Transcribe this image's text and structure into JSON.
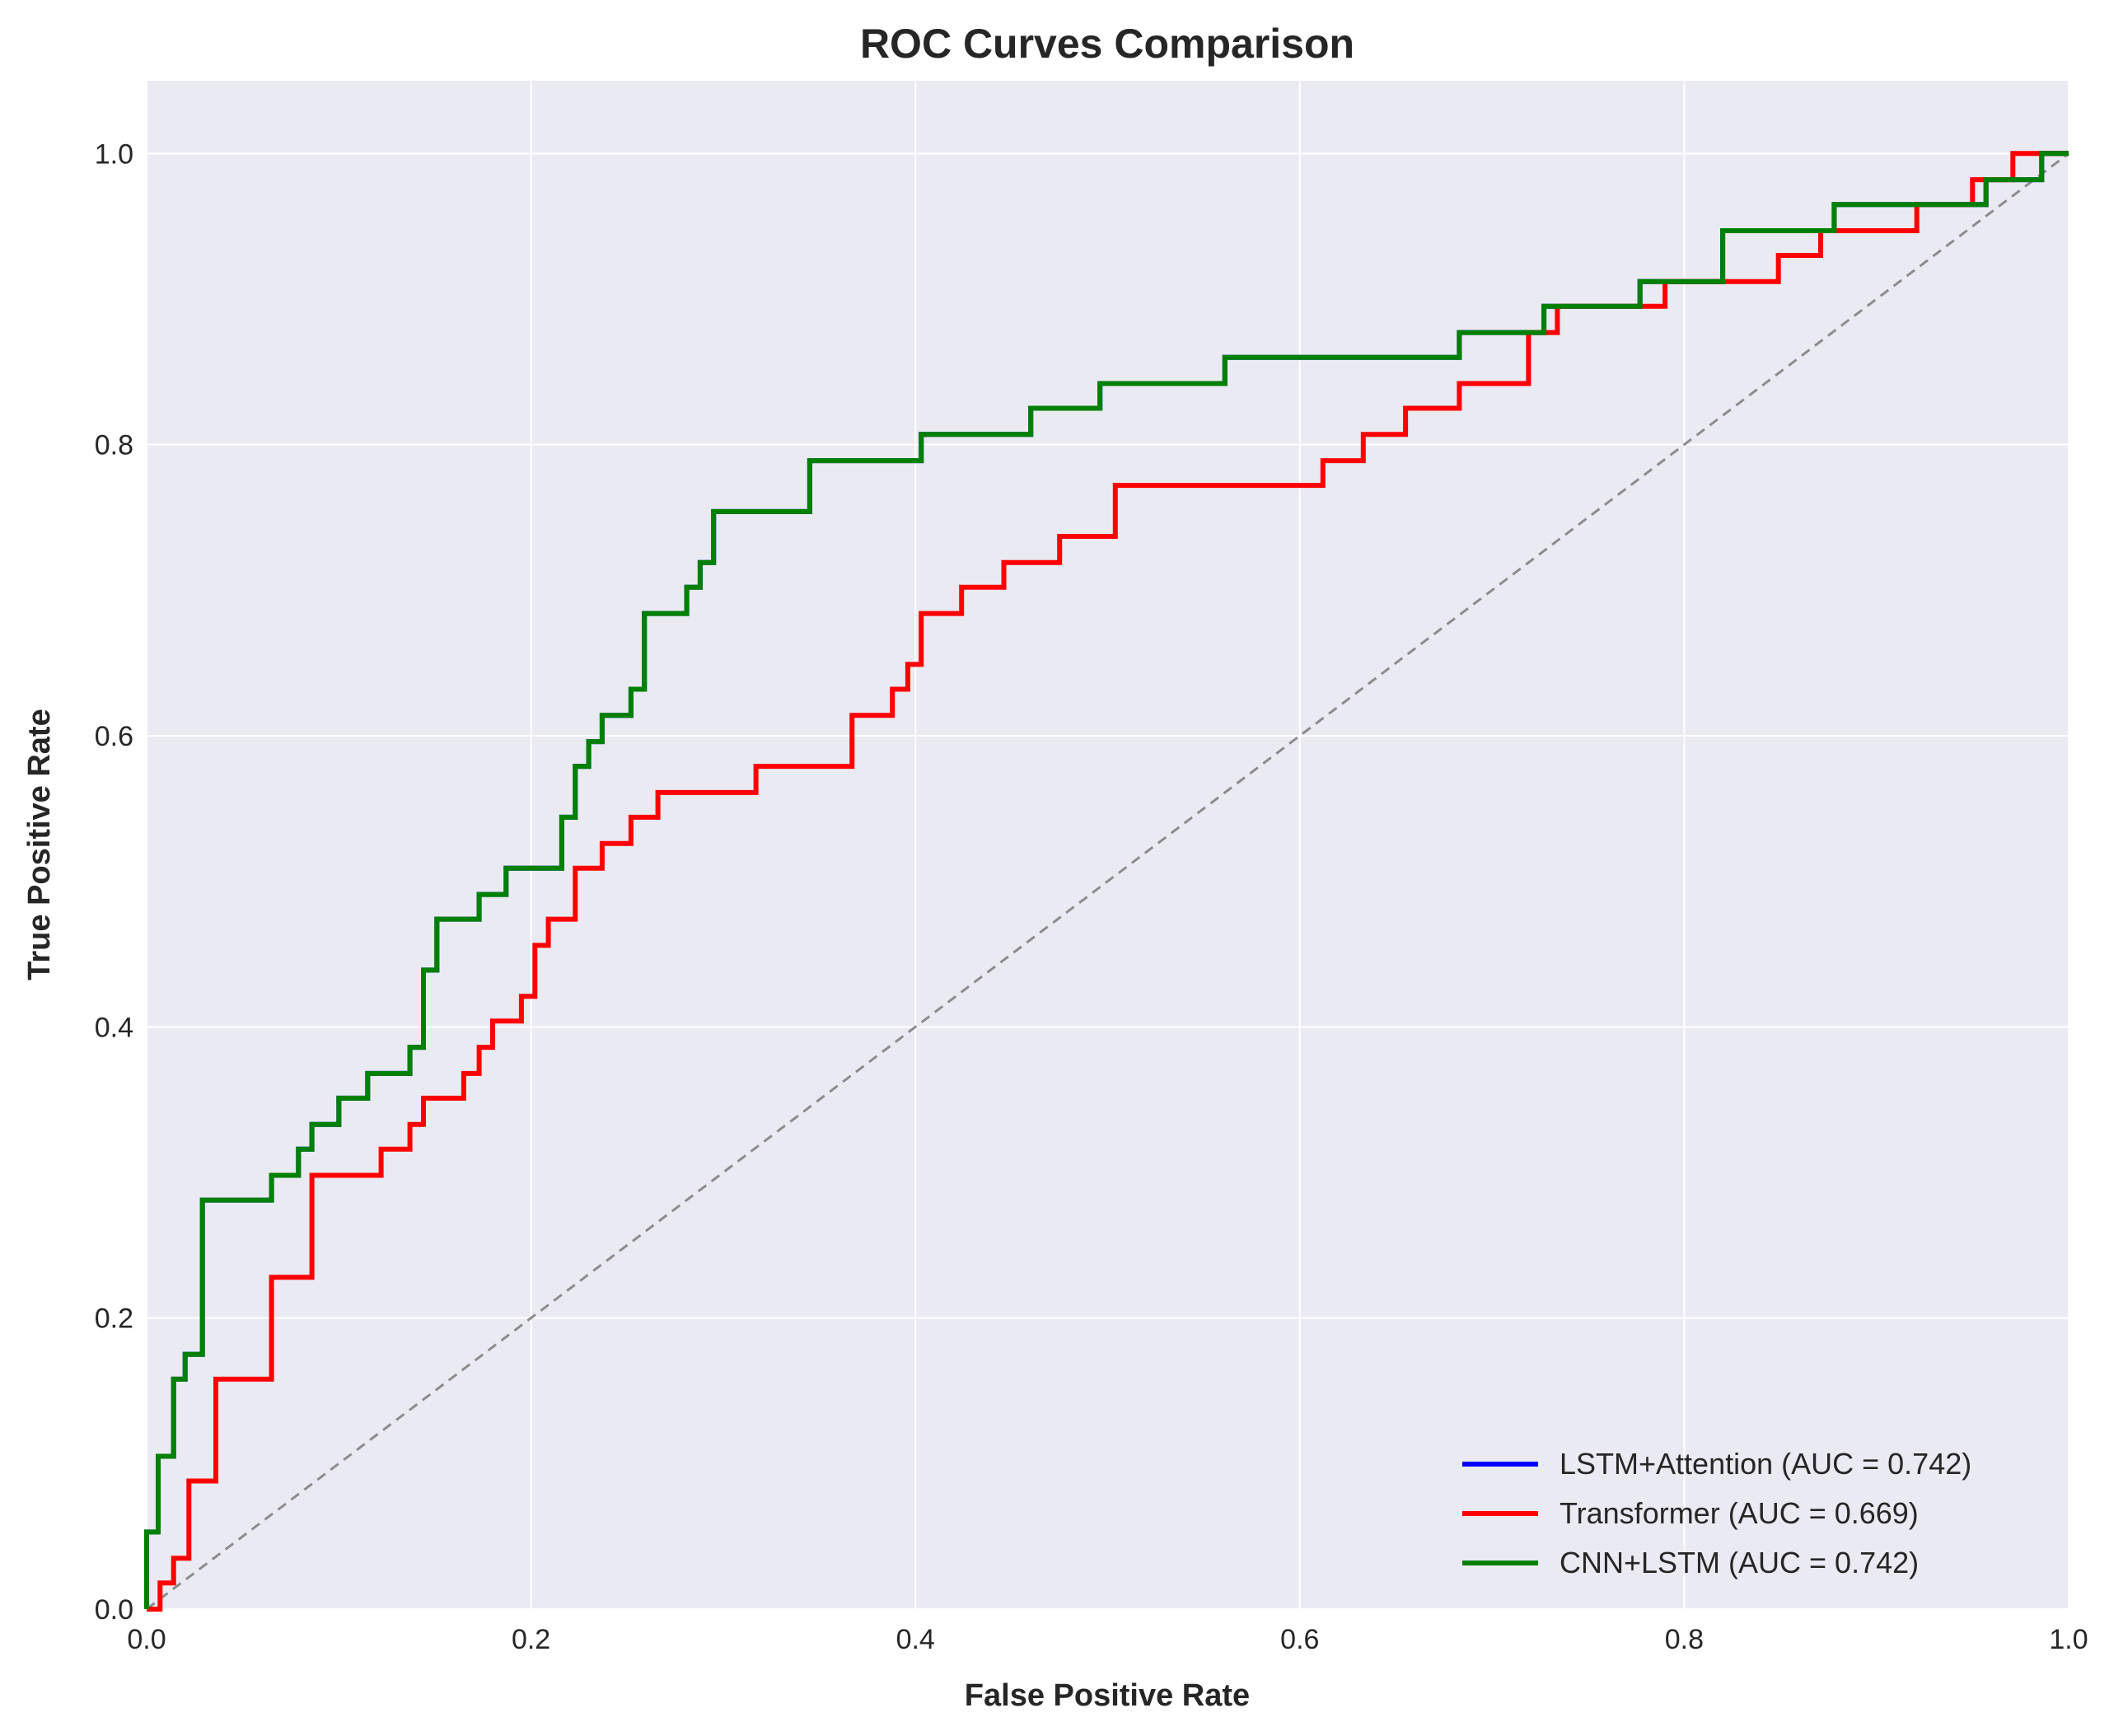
{
  "chart_data": {
    "type": "line",
    "title": "ROC Curves Comparison",
    "xlabel": "False Positive Rate",
    "ylabel": "True Positive Rate",
    "xlim": [
      0,
      1
    ],
    "ylim": [
      0,
      1.05
    ],
    "xticks": [
      "0.0",
      "0.2",
      "0.4",
      "0.6",
      "0.8",
      "1.0"
    ],
    "yticks": [
      "0.0",
      "0.2",
      "0.4",
      "0.6",
      "0.8",
      "1.0"
    ],
    "grid": true,
    "background": "#eaeaf2",
    "legend_position": "lower-right",
    "series": [
      {
        "name": "LSTM+Attention (AUC = 0.742)",
        "color": "#0000ff",
        "x": [
          0.0,
          0.0,
          0.006,
          0.006,
          0.014,
          0.014,
          0.02,
          0.02,
          0.029,
          0.029,
          0.065,
          0.065,
          0.079,
          0.079,
          0.086,
          0.086,
          0.1,
          0.1,
          0.115,
          0.115,
          0.137,
          0.137,
          0.144,
          0.144,
          0.151,
          0.151,
          0.173,
          0.173,
          0.187,
          0.187,
          0.216,
          0.216,
          0.223,
          0.223,
          0.23,
          0.23,
          0.237,
          0.237,
          0.252,
          0.252,
          0.259,
          0.259,
          0.281,
          0.281,
          0.288,
          0.288,
          0.295,
          0.295,
          0.345,
          0.345,
          0.403,
          0.403,
          0.46,
          0.46,
          0.496,
          0.496,
          0.561,
          0.561,
          0.683,
          0.683,
          0.727,
          0.727,
          0.777,
          0.777,
          0.82,
          0.82,
          0.878,
          0.878,
          0.957,
          0.957,
          0.986,
          0.986,
          1.0
        ],
        "y": [
          0.0,
          0.053,
          0.053,
          0.105,
          0.105,
          0.158,
          0.158,
          0.175,
          0.175,
          0.281,
          0.281,
          0.298,
          0.298,
          0.316,
          0.316,
          0.333,
          0.333,
          0.351,
          0.351,
          0.368,
          0.368,
          0.386,
          0.386,
          0.439,
          0.439,
          0.474,
          0.474,
          0.491,
          0.491,
          0.509,
          0.509,
          0.544,
          0.544,
          0.579,
          0.579,
          0.596,
          0.596,
          0.614,
          0.614,
          0.632,
          0.632,
          0.684,
          0.684,
          0.702,
          0.702,
          0.719,
          0.719,
          0.754,
          0.754,
          0.789,
          0.789,
          0.807,
          0.807,
          0.825,
          0.825,
          0.842,
          0.842,
          0.86,
          0.86,
          0.877,
          0.877,
          0.895,
          0.895,
          0.912,
          0.912,
          0.947,
          0.947,
          0.965,
          0.965,
          0.982,
          0.982,
          1.0,
          1.0
        ]
      },
      {
        "name": "Transformer (AUC = 0.669)",
        "color": "#ff0000",
        "x": [
          0.0,
          0.007,
          0.007,
          0.014,
          0.014,
          0.022,
          0.022,
          0.036,
          0.036,
          0.065,
          0.065,
          0.086,
          0.086,
          0.122,
          0.122,
          0.137,
          0.137,
          0.144,
          0.144,
          0.165,
          0.165,
          0.173,
          0.173,
          0.18,
          0.18,
          0.195,
          0.195,
          0.202,
          0.202,
          0.209,
          0.209,
          0.223,
          0.223,
          0.237,
          0.237,
          0.252,
          0.252,
          0.266,
          0.266,
          0.317,
          0.317,
          0.367,
          0.367,
          0.388,
          0.388,
          0.396,
          0.396,
          0.403,
          0.403,
          0.424,
          0.424,
          0.446,
          0.446,
          0.475,
          0.475,
          0.504,
          0.504,
          0.612,
          0.612,
          0.633,
          0.633,
          0.655,
          0.655,
          0.683,
          0.683,
          0.719,
          0.719,
          0.734,
          0.734,
          0.79,
          0.79,
          0.849,
          0.849,
          0.871,
          0.871,
          0.921,
          0.921,
          0.95,
          0.95,
          0.971,
          0.971,
          1.0
        ],
        "y": [
          0.0,
          0.0,
          0.018,
          0.018,
          0.035,
          0.035,
          0.088,
          0.088,
          0.158,
          0.158,
          0.228,
          0.228,
          0.298,
          0.298,
          0.316,
          0.316,
          0.333,
          0.333,
          0.351,
          0.351,
          0.368,
          0.368,
          0.386,
          0.386,
          0.404,
          0.404,
          0.421,
          0.421,
          0.456,
          0.456,
          0.474,
          0.474,
          0.509,
          0.509,
          0.526,
          0.526,
          0.544,
          0.544,
          0.561,
          0.561,
          0.579,
          0.579,
          0.614,
          0.614,
          0.632,
          0.632,
          0.649,
          0.649,
          0.684,
          0.684,
          0.702,
          0.702,
          0.719,
          0.719,
          0.737,
          0.737,
          0.772,
          0.772,
          0.789,
          0.789,
          0.807,
          0.807,
          0.825,
          0.825,
          0.842,
          0.842,
          0.877,
          0.877,
          0.895,
          0.895,
          0.912,
          0.912,
          0.93,
          0.93,
          0.947,
          0.947,
          0.965,
          0.965,
          0.982,
          0.982,
          1.0,
          1.0
        ]
      },
      {
        "name": "CNN+LSTM (AUC = 0.742)",
        "color": "#008000",
        "x": [
          0.0,
          0.0,
          0.006,
          0.006,
          0.014,
          0.014,
          0.02,
          0.02,
          0.029,
          0.029,
          0.065,
          0.065,
          0.079,
          0.079,
          0.086,
          0.086,
          0.1,
          0.1,
          0.115,
          0.115,
          0.137,
          0.137,
          0.144,
          0.144,
          0.151,
          0.151,
          0.173,
          0.173,
          0.187,
          0.187,
          0.216,
          0.216,
          0.223,
          0.223,
          0.23,
          0.23,
          0.237,
          0.237,
          0.252,
          0.252,
          0.259,
          0.259,
          0.281,
          0.281,
          0.288,
          0.288,
          0.295,
          0.295,
          0.345,
          0.345,
          0.403,
          0.403,
          0.46,
          0.46,
          0.496,
          0.496,
          0.561,
          0.561,
          0.683,
          0.683,
          0.727,
          0.727,
          0.777,
          0.777,
          0.82,
          0.82,
          0.878,
          0.878,
          0.957,
          0.957,
          0.986,
          0.986,
          1.0
        ],
        "y": [
          0.0,
          0.053,
          0.053,
          0.105,
          0.105,
          0.158,
          0.158,
          0.175,
          0.175,
          0.281,
          0.281,
          0.298,
          0.298,
          0.316,
          0.316,
          0.333,
          0.333,
          0.351,
          0.351,
          0.368,
          0.368,
          0.386,
          0.386,
          0.439,
          0.439,
          0.474,
          0.474,
          0.491,
          0.491,
          0.509,
          0.509,
          0.544,
          0.544,
          0.579,
          0.579,
          0.596,
          0.596,
          0.614,
          0.614,
          0.632,
          0.632,
          0.684,
          0.684,
          0.702,
          0.702,
          0.719,
          0.719,
          0.754,
          0.754,
          0.789,
          0.789,
          0.807,
          0.807,
          0.825,
          0.825,
          0.842,
          0.842,
          0.86,
          0.86,
          0.877,
          0.877,
          0.895,
          0.895,
          0.912,
          0.912,
          0.947,
          0.947,
          0.965,
          0.965,
          0.982,
          0.982,
          1.0,
          1.0
        ]
      }
    ],
    "reference_line": {
      "x": [
        0,
        1
      ],
      "y": [
        0,
        1
      ],
      "color": "#8c8c8c",
      "style": "dashed"
    }
  }
}
